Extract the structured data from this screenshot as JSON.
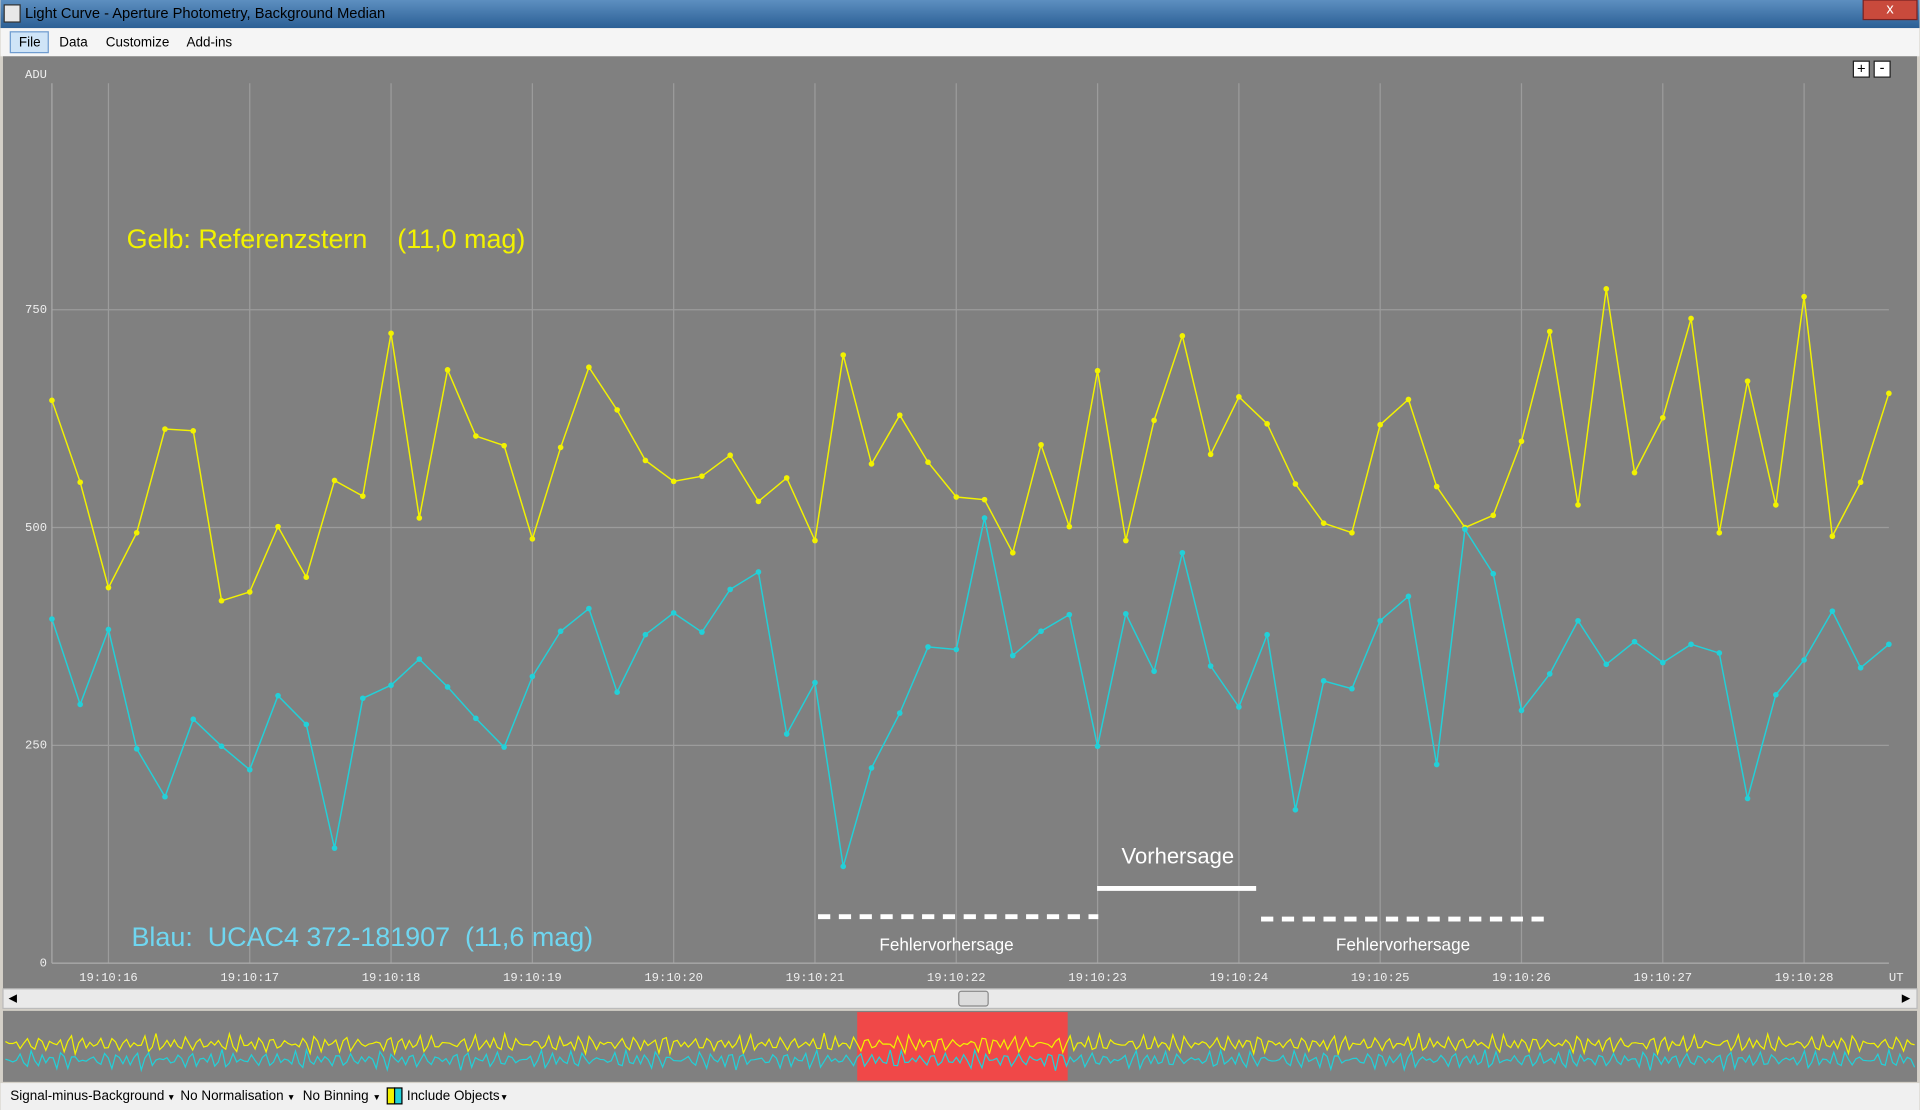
{
  "window": {
    "title": "Light Curve - Aperture Photometry, Background Median"
  },
  "menu": [
    "File",
    "Data",
    "Customize",
    "Add-ins"
  ],
  "chart_data": {
    "type": "line",
    "y_label": "ADU",
    "x_label": "UT",
    "categories": [
      null,
      null,
      "19:10:16",
      null,
      null,
      null,
      null,
      "19:10:17",
      null,
      null,
      null,
      null,
      "19:10:18",
      null,
      null,
      null,
      null,
      "19:10:19",
      null,
      null,
      null,
      null,
      "19:10:20",
      null,
      null,
      null,
      null,
      "19:10:21",
      null,
      null,
      null,
      null,
      "19:10:22",
      null,
      null,
      null,
      null,
      "19:10:23",
      null,
      null,
      null,
      null,
      "19:10:24",
      null,
      null,
      null,
      null,
      "19:10:25",
      null,
      null,
      null,
      null,
      "19:10:26",
      null,
      null,
      null,
      null,
      "19:10:27",
      null,
      null,
      null,
      null,
      "19:10:28",
      null,
      null,
      null
    ],
    "ylim": [
      0,
      1010
    ],
    "yticks": [
      0,
      250,
      500,
      750
    ],
    "grid": true,
    "series": [
      {
        "name": "Gelb: Referenzstern    (11,0 mag)",
        "color": "#f2f200",
        "values": [
          646,
          552,
          431,
          494,
          613,
          611,
          416,
          426,
          501,
          443,
          554,
          536,
          723,
          511,
          681,
          605,
          594,
          487,
          592,
          684,
          635,
          577,
          553,
          559,
          583,
          530,
          557,
          485,
          698,
          573,
          629,
          575,
          535,
          532,
          471,
          595,
          501,
          680,
          485,
          623,
          720,
          584,
          650,
          619,
          550,
          505,
          494,
          618,
          647,
          547,
          500,
          514,
          599,
          725,
          526,
          774,
          563,
          626,
          740,
          494,
          668,
          526,
          765,
          490,
          552,
          654
        ]
      },
      {
        "name": "Blau:  UCAC4 372-181907  (11,6 mag)",
        "color": "#22d0d8",
        "values": [
          395,
          297,
          383,
          246,
          191,
          280,
          249,
          222,
          307,
          274,
          132,
          304,
          319,
          349,
          317,
          281,
          248,
          329,
          381,
          407,
          311,
          377,
          402,
          380,
          429,
          449,
          263,
          322,
          111,
          224,
          287,
          363,
          360,
          511,
          353,
          381,
          400,
          249,
          401,
          335,
          471,
          341,
          294,
          377,
          176,
          324,
          315,
          393,
          421,
          228,
          498,
          447,
          290,
          332,
          393,
          343,
          369,
          345,
          366,
          356,
          189,
          308,
          348,
          404,
          339,
          366
        ]
      }
    ],
    "annotations": [
      "Vorhersage",
      "Fehlervorhersage",
      "Fehlervorhersage"
    ]
  },
  "status_bar": [
    "Signal-minus-Background",
    "No Normalisation",
    "No Binning",
    "Include Objects"
  ]
}
